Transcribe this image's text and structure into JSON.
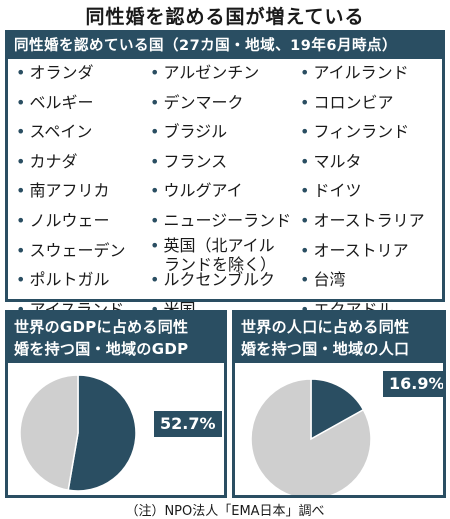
{
  "title": "同性婚を認める国が増えている",
  "countries_header": "同性婚を認めている国（27カ国・地域、19年6月時点）",
  "bullet": "•",
  "countries": [
    [
      "オランダ",
      "ベルギー",
      "スペイン",
      "カナダ",
      "南アフリカ",
      "ノルウェー",
      "スウェーデン",
      "ポルトガル",
      "アイスランド"
    ],
    [
      "アルゼンチン",
      "デンマーク",
      "ブラジル",
      "フランス",
      "ウルグアイ",
      "ニュージーランド",
      "英国（北アイル|ランドを除く）",
      "ルクセンブルク",
      "米国"
    ],
    [
      "アイルランド",
      "コロンビア",
      "フィンランド",
      "マルタ",
      "ドイツ",
      "オーストラリア",
      "オーストリア",
      "台湾",
      "エクアドル"
    ]
  ],
  "chart_data": [
    {
      "type": "pie",
      "title": "世界のGDPに占める同性婚を持つ国・地域のGDP",
      "slices": [
        {
          "label": "52.7%",
          "value": 52.7,
          "color": "#2a4e62"
        },
        {
          "label": "",
          "value": 47.3,
          "color": "#cfcfcf"
        }
      ]
    },
    {
      "type": "pie",
      "title": "世界の人口に占める同性婚を持つ国・地域の人口",
      "slices": [
        {
          "label": "16.9%",
          "value": 16.9,
          "color": "#2a4e62"
        },
        {
          "label": "",
          "value": 83.1,
          "color": "#cfcfcf"
        }
      ]
    }
  ],
  "panel_titles": [
    [
      "世界のGDPに占める同性",
      "婚を持つ国・地域のGDP"
    ],
    [
      "世界の人口に占める同性",
      "婚を持つ国・地域の人口"
    ]
  ],
  "footnote": "（注）NPO法人「EMA日本」調べ"
}
